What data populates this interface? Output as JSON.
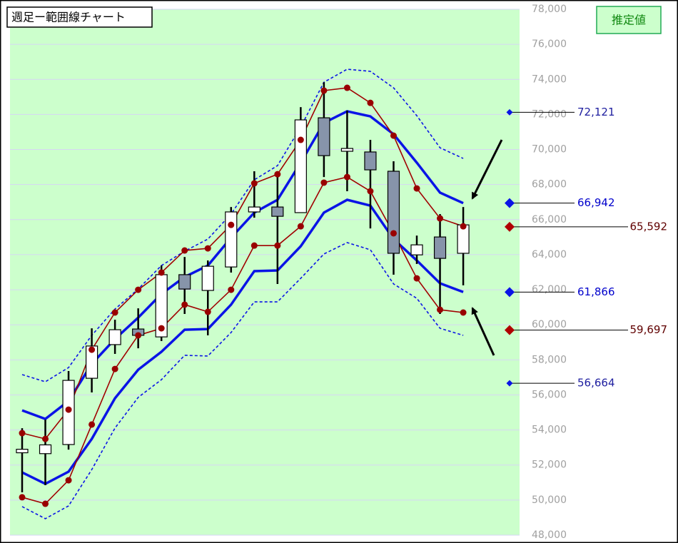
{
  "chart_data": {
    "type": "candlestick",
    "title": "週足ー範囲線チャート",
    "estimate_title": "推定値",
    "ylim": [
      48000,
      78000
    ],
    "yticks": [
      {
        "value": 48000,
        "label": "48,000"
      },
      {
        "value": 50000,
        "label": "50,000"
      },
      {
        "value": 52000,
        "label": "52,000"
      },
      {
        "value": 54000,
        "label": "54,000"
      },
      {
        "value": 56000,
        "label": "56,000"
      },
      {
        "value": 58000,
        "label": "58,000"
      },
      {
        "value": 60000,
        "label": "60,000"
      },
      {
        "value": 62000,
        "label": "62,000"
      },
      {
        "value": 64000,
        "label": "64,000"
      },
      {
        "value": 66000,
        "label": "66,000"
      },
      {
        "value": 68000,
        "label": "68,000"
      },
      {
        "value": 70000,
        "label": "70,000"
      },
      {
        "value": 72000,
        "label": "72,000"
      },
      {
        "value": 74000,
        "label": "74,000"
      },
      {
        "value": 76000,
        "label": "76,000"
      },
      {
        "value": 78000,
        "label": "78,000"
      }
    ],
    "grid": true,
    "up_color": "#ffffff",
    "down_color": "#8794aa",
    "candles": {
      "open": [
        52700,
        52650,
        53170,
        56950,
        58870,
        59760,
        59310,
        62860,
        61960,
        63300,
        66440,
        66720,
        66400,
        71810,
        69900,
        69860,
        68760,
        63990,
        65010,
        64080
      ],
      "high": [
        54100,
        54590,
        57360,
        59800,
        60290,
        60940,
        63380,
        63870,
        63670,
        66720,
        68760,
        68550,
        72420,
        73840,
        72220,
        70550,
        69330,
        65090,
        66320,
        66720
      ],
      "low": [
        50440,
        50850,
        52880,
        56140,
        58340,
        58660,
        59070,
        60620,
        59400,
        62980,
        66110,
        62330,
        66400,
        68430,
        67620,
        65500,
        62860,
        63470,
        60620,
        62250
      ],
      "close": [
        52900,
        53150,
        56830,
        58790,
        59720,
        59400,
        62860,
        62040,
        63340,
        66440,
        66720,
        66190,
        71690,
        69650,
        70060,
        68840,
        64080,
        64560,
        63790,
        65700
      ]
    },
    "series": [
      {
        "color": "#0a14e6",
        "style": "thick",
        "values": [
          55120,
          54630,
          55650,
          57770,
          59190,
          60410,
          61760,
          62730,
          63380,
          64970,
          66400,
          67130,
          69250,
          71520,
          72180,
          71890,
          70870,
          69250,
          67540,
          66940
        ]
      },
      {
        "color": "#0a14e6",
        "style": "thick",
        "values": [
          51580,
          50930,
          51620,
          53490,
          55810,
          57440,
          58460,
          59720,
          59760,
          61150,
          63060,
          63100,
          64480,
          66400,
          67130,
          66800,
          64890,
          63670,
          62370,
          61870
        ]
      },
      {
        "color": "#0a14e6",
        "style": "dashed",
        "values": [
          57160,
          56750,
          57560,
          59400,
          60900,
          62040,
          63380,
          64200,
          64890,
          66320,
          68270,
          69080,
          71280,
          73840,
          74580,
          74460,
          73520,
          71930,
          70100,
          69490
        ]
      },
      {
        "color": "#0a14e6",
        "style": "dashed",
        "values": [
          49630,
          48940,
          49670,
          51740,
          54110,
          55860,
          56870,
          58260,
          58220,
          59560,
          61310,
          61310,
          62650,
          64040,
          64690,
          64280,
          62330,
          61510,
          59800,
          59400
        ]
      },
      {
        "color": "#a00000",
        "style": "markers",
        "values": [
          53820,
          53490,
          55160,
          58580,
          60700,
          62000,
          62980,
          64240,
          64360,
          65700,
          68070,
          68590,
          70550,
          73360,
          73520,
          72660,
          70790,
          67780,
          66070,
          65620
        ]
      },
      {
        "color": "#a00000",
        "style": "markers",
        "values": [
          50160,
          49790,
          51130,
          54310,
          57480,
          59400,
          59800,
          61150,
          60740,
          62000,
          64520,
          64520,
          65620,
          68110,
          68430,
          67620,
          65220,
          62650,
          60860,
          60700
        ]
      }
    ],
    "estimates": {
      "values": [
        72121,
        66942,
        65592,
        61866,
        59697,
        56664
      ],
      "value_labels": [
        "72,121",
        "66,942",
        "65,592",
        "61,866",
        "59,697",
        "56,664"
      ],
      "colors": [
        "#0a14e6",
        "#0a14e6",
        "#b00000",
        "#0a14e6",
        "#b00000",
        "#0a14e6"
      ],
      "label_colors": [
        "#2020a0",
        "#0000cc",
        "#600000",
        "#0000cc",
        "#600000",
        "#2020a0"
      ],
      "sizes": [
        "small",
        "large",
        "large",
        "large",
        "large",
        "small"
      ]
    }
  }
}
